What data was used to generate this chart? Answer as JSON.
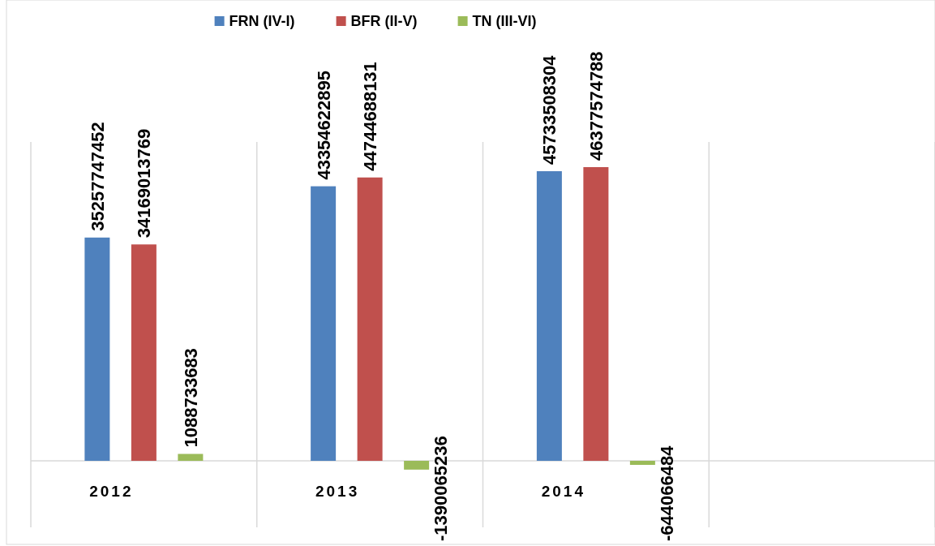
{
  "chart_data": {
    "type": "bar",
    "categories": [
      "2012",
      "2013",
      "2014",
      null
    ],
    "series": [
      {
        "name": "FRN (IV-I)",
        "color": "#4f81bd",
        "values": [
          35257747452,
          43354622895,
          45733508304,
          null
        ]
      },
      {
        "name": "BFR (II-V)",
        "color": "#c0504d",
        "values": [
          34169013769,
          44744688131,
          46377574788,
          null
        ]
      },
      {
        "name": "TN (III-VI)",
        "color": "#9bbb59",
        "values": [
          1088733683,
          -1390065236,
          -644066484,
          null
        ]
      }
    ],
    "data_labels": true,
    "grid": "x",
    "legend": "top"
  }
}
